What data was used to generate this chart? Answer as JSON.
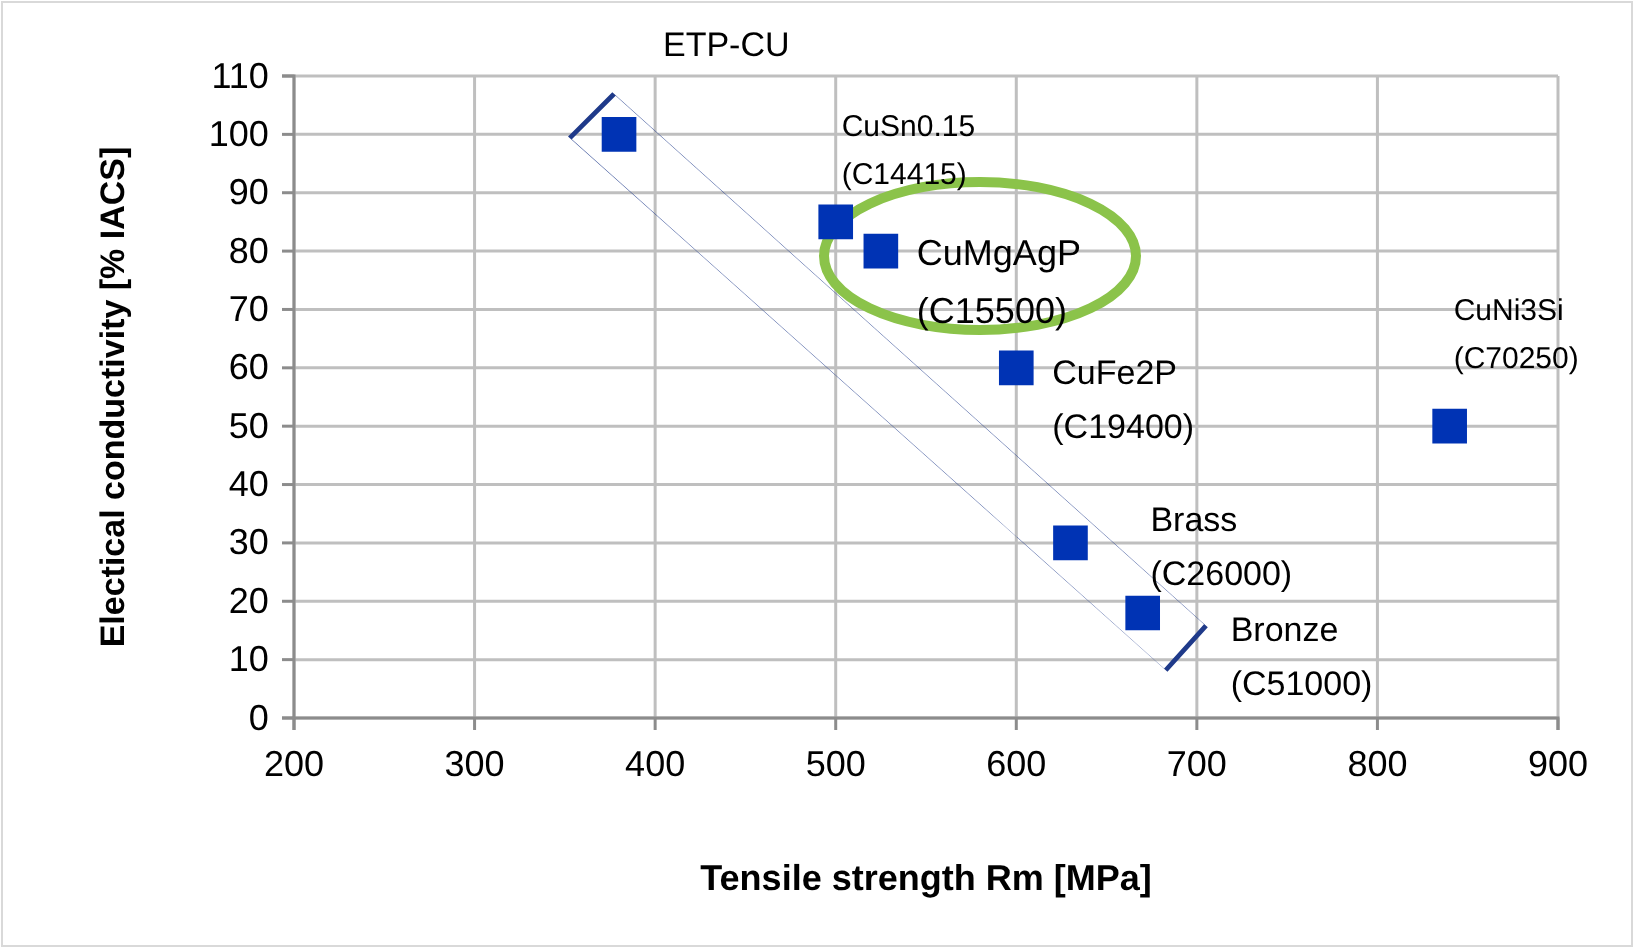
{
  "chart_data": {
    "type": "scatter",
    "xlabel": "Tensile strength Rm [MPa]",
    "ylabel": "Electical conductivity [% IACS]",
    "x": [
      380,
      500,
      525,
      600,
      630,
      670,
      840
    ],
    "series": [
      {
        "color": "#0033b4",
        "values": [
          100,
          85,
          80,
          60,
          30,
          18,
          50
        ]
      }
    ],
    "xlim": [
      200,
      900
    ],
    "xticks": [
      200,
      300,
      400,
      500,
      600,
      700,
      800,
      900
    ],
    "ylim": [
      0,
      110
    ],
    "yticks": [
      0,
      10,
      20,
      30,
      40,
      50,
      60,
      70,
      80,
      90,
      100,
      110
    ],
    "grid": true,
    "marker": "square",
    "annotations": [
      {
        "text": "ETP-CU",
        "x": 380,
        "y": 100
      },
      {
        "text": "CuSn0.15 (C14415)",
        "x": 500,
        "y": 85
      },
      {
        "text": "CuMgAgP (C15500)",
        "x": 525,
        "y": 80
      },
      {
        "text": "CuFe2P (C19400)",
        "x": 600,
        "y": 60
      },
      {
        "text": "Brass (C26000)",
        "x": 630,
        "y": 30
      },
      {
        "text": "Bronze (C51000)",
        "x": 670,
        "y": 18
      },
      {
        "text": "CuNi3Si (C70250)",
        "x": 840,
        "y": 50
      }
    ]
  }
}
